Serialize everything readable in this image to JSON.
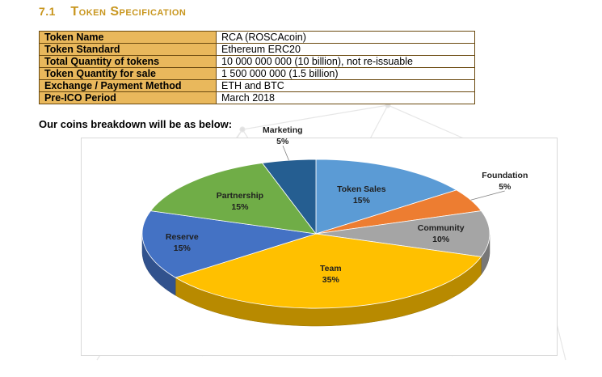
{
  "section": {
    "number": "7.1",
    "title": "Token Specification"
  },
  "spec_rows": [
    {
      "key": "Token Name",
      "value": "RCA (ROSCAcoin)"
    },
    {
      "key": "Token Standard",
      "value": "Ethereum ERC20"
    },
    {
      "key": "Total Quantity of tokens",
      "value": "10 000 000 000 (10 billion), not re-issuable"
    },
    {
      "key": "Token Quantity for sale",
      "value": "1 500 000 000 (1.5 billion)"
    },
    {
      "key": "Exchange / Payment Method",
      "value": "ETH and BTC"
    },
    {
      "key": "Pre-ICO Period",
      "value": "March 2018"
    }
  ],
  "intro_text": "Our coins breakdown will be as below:",
  "chart_data": {
    "type": "pie",
    "categories": [
      "Token Sales",
      "Foundation",
      "Community",
      "Team",
      "Reserve",
      "Partnership",
      "Marketing"
    ],
    "values": [
      15,
      5,
      10,
      35,
      15,
      15,
      5
    ],
    "labels": [
      "15%",
      "5%",
      "10%",
      "35%",
      "15%",
      "15%",
      "5%"
    ],
    "colors": [
      "#5b9bd5",
      "#ed7d31",
      "#a5a5a5",
      "#ffc000",
      "#4472c4",
      "#70ad47",
      "#255e91"
    ],
    "label_colors": [
      "#1f1f1f",
      "#1f1f1f",
      "#1f1f1f",
      "#1f1f1f",
      "#1f1f1f",
      "#1f1f1f",
      "#1f1f1f"
    ],
    "title": ""
  }
}
